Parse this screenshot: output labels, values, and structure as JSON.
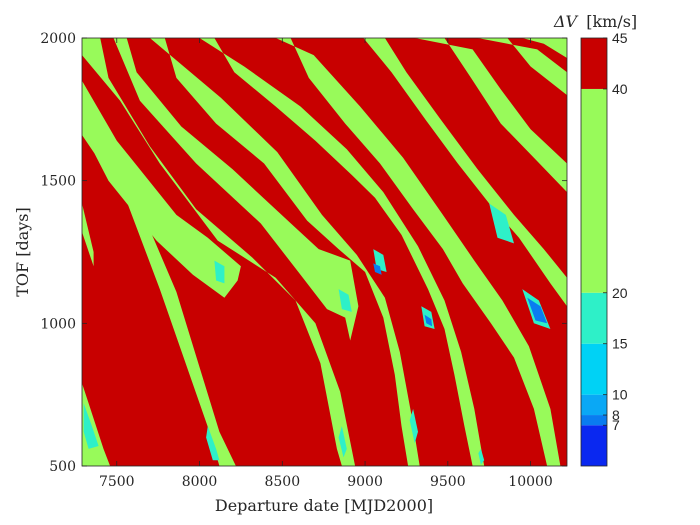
{
  "chart_data": {
    "type": "contour",
    "xlabel": "Departure date [MJD2000]",
    "ylabel": "TOF [days]",
    "xlim": [
      7290,
      10220
    ],
    "ylim": [
      500,
      2000
    ],
    "x_ticks": [
      "7500",
      "8000",
      "8500",
      "9000",
      "9500",
      "10000"
    ],
    "y_ticks": [
      "500",
      "1000",
      "1500",
      "2000"
    ],
    "colorbar": {
      "title_symbol": "ΔV",
      "title_unit": "[km/s]",
      "range": [
        3,
        45
      ],
      "tick_labels": [
        "7",
        "8",
        "10",
        "15",
        "20",
        "40",
        "45"
      ],
      "tick_values": [
        7,
        8,
        10,
        15,
        20,
        40,
        45
      ],
      "bands": [
        {
          "from": 3,
          "to": 7,
          "color": "#0a28f0"
        },
        {
          "from": 7,
          "to": 8,
          "color": "#0a7cf0"
        },
        {
          "from": 8,
          "to": 10,
          "color": "#0aa8f5"
        },
        {
          "from": 10,
          "to": 15,
          "color": "#00d2f5"
        },
        {
          "from": 15,
          "to": 20,
          "color": "#2ef0c8"
        },
        {
          "from": 20,
          "to": 40,
          "color": "#98fa5a"
        },
        {
          "from": 40,
          "to": 45,
          "color": "#c80000"
        }
      ]
    },
    "background_color": "#c80000",
    "colors": {
      "green": "#98fa5a",
      "cyan": "#2ef0c8",
      "lightblue": "#00d2f5",
      "blue": "#0a7cf0",
      "red": "#c80000"
    },
    "bands_regions": [
      {
        "points": [
          [
            7290,
            790
          ],
          [
            7330,
            720
          ],
          [
            7420,
            560
          ],
          [
            7460,
            500
          ],
          [
            7290,
            500
          ]
        ],
        "level": "green"
      },
      {
        "points": [
          [
            7290,
            1420
          ],
          [
            7360,
            1250
          ],
          [
            7360,
            1200
          ],
          [
            7290,
            1320
          ]
        ],
        "level": "green"
      },
      {
        "points": [
          [
            7290,
            1700
          ],
          [
            7500,
            1520
          ],
          [
            7760,
            1120
          ],
          [
            8060,
            620
          ],
          [
            8120,
            500
          ],
          [
            8220,
            500
          ],
          [
            8120,
            620
          ],
          [
            7860,
            1110
          ],
          [
            7610,
            1450
          ],
          [
            7360,
            1600
          ],
          [
            7290,
            1660
          ]
        ],
        "level": "green"
      },
      {
        "points": [
          [
            7290,
            1850
          ],
          [
            7500,
            1640
          ],
          [
            7860,
            1380
          ],
          [
            8050,
            1300
          ],
          [
            8250,
            1200
          ],
          [
            8230,
            1150
          ],
          [
            8150,
            1090
          ],
          [
            7960,
            1170
          ],
          [
            7740,
            1290
          ],
          [
            7450,
            1500
          ],
          [
            7290,
            1680
          ]
        ],
        "level": "green"
      },
      {
        "points": [
          [
            7290,
            2000
          ],
          [
            7400,
            2000
          ],
          [
            7450,
            1860
          ],
          [
            7700,
            1620
          ],
          [
            7980,
            1400
          ],
          [
            8320,
            1230
          ],
          [
            8580,
            1080
          ],
          [
            8730,
            860
          ],
          [
            8830,
            560
          ],
          [
            8860,
            500
          ],
          [
            8940,
            500
          ],
          [
            8850,
            760
          ],
          [
            8700,
            1000
          ],
          [
            8460,
            1160
          ],
          [
            8110,
            1290
          ],
          [
            7760,
            1560
          ],
          [
            7520,
            1780
          ],
          [
            7290,
            1940
          ]
        ],
        "level": "green"
      },
      {
        "points": [
          [
            7480,
            2000
          ],
          [
            7560,
            2000
          ],
          [
            7620,
            1880
          ],
          [
            7890,
            1690
          ],
          [
            8200,
            1540
          ],
          [
            8570,
            1340
          ],
          [
            8720,
            1260
          ],
          [
            8910,
            1220
          ],
          [
            8960,
            1060
          ],
          [
            8910,
            940
          ],
          [
            8880,
            1020
          ],
          [
            8770,
            1050
          ],
          [
            8610,
            1170
          ],
          [
            8370,
            1350
          ],
          [
            7980,
            1560
          ],
          [
            7640,
            1780
          ]
        ],
        "level": "green"
      },
      {
        "points": [
          [
            7700,
            2000
          ],
          [
            7790,
            2000
          ],
          [
            7860,
            1860
          ],
          [
            8100,
            1700
          ],
          [
            8390,
            1560
          ],
          [
            8650,
            1360
          ],
          [
            8840,
            1260
          ],
          [
            9000,
            1180
          ],
          [
            9110,
            1020
          ],
          [
            9180,
            820
          ],
          [
            9220,
            640
          ],
          [
            9260,
            500
          ],
          [
            9330,
            500
          ],
          [
            9280,
            680
          ],
          [
            9210,
            900
          ],
          [
            9120,
            1090
          ],
          [
            8950,
            1240
          ],
          [
            8740,
            1380
          ],
          [
            8470,
            1600
          ],
          [
            8130,
            1790
          ]
        ],
        "level": "green"
      },
      {
        "points": [
          [
            8000,
            2000
          ],
          [
            8090,
            2000
          ],
          [
            8210,
            1880
          ],
          [
            8460,
            1760
          ],
          [
            8700,
            1640
          ],
          [
            8920,
            1520
          ],
          [
            9060,
            1440
          ],
          [
            9220,
            1310
          ],
          [
            9380,
            1120
          ],
          [
            9480,
            980
          ],
          [
            9540,
            820
          ],
          [
            9600,
            640
          ],
          [
            9650,
            500
          ],
          [
            9720,
            500
          ],
          [
            9660,
            700
          ],
          [
            9580,
            900
          ],
          [
            9480,
            1080
          ],
          [
            9320,
            1270
          ],
          [
            9110,
            1460
          ],
          [
            8890,
            1610
          ],
          [
            8610,
            1760
          ],
          [
            8270,
            1900
          ]
        ],
        "level": "green"
      },
      {
        "points": [
          [
            8460,
            2000
          ],
          [
            8550,
            2000
          ],
          [
            8660,
            1860
          ],
          [
            8880,
            1700
          ],
          [
            9090,
            1560
          ],
          [
            9290,
            1400
          ],
          [
            9470,
            1260
          ],
          [
            9590,
            1140
          ],
          [
            9760,
            1000
          ],
          [
            9900,
            880
          ],
          [
            10020,
            700
          ],
          [
            10100,
            500
          ],
          [
            10180,
            500
          ],
          [
            10120,
            700
          ],
          [
            9990,
            920
          ],
          [
            9830,
            1080
          ],
          [
            9660,
            1220
          ],
          [
            9470,
            1380
          ],
          [
            9230,
            1580
          ],
          [
            8970,
            1760
          ],
          [
            8690,
            1940
          ]
        ],
        "level": "green"
      },
      {
        "points": [
          [
            8780,
            2000
          ],
          [
            8990,
            2000
          ],
          [
            9160,
            1880
          ],
          [
            9370,
            1710
          ],
          [
            9560,
            1560
          ],
          [
            9750,
            1420
          ],
          [
            9930,
            1300
          ],
          [
            10120,
            1140
          ],
          [
            10220,
            1060
          ],
          [
            10220,
            1160
          ],
          [
            10080,
            1260
          ],
          [
            9900,
            1380
          ],
          [
            9680,
            1540
          ],
          [
            9450,
            1720
          ],
          [
            9250,
            1880
          ],
          [
            9120,
            2000
          ]
        ],
        "level": "green"
      },
      {
        "points": [
          [
            9300,
            2000
          ],
          [
            9480,
            2000
          ],
          [
            9640,
            1860
          ],
          [
            9820,
            1700
          ],
          [
            10020,
            1580
          ],
          [
            10220,
            1460
          ],
          [
            10220,
            1560
          ],
          [
            10000,
            1680
          ],
          [
            9820,
            1820
          ],
          [
            9650,
            1960
          ]
        ],
        "level": "green"
      },
      {
        "points": [
          [
            9680,
            2000
          ],
          [
            9860,
            2000
          ],
          [
            10000,
            1900
          ],
          [
            10220,
            1800
          ],
          [
            10220,
            1880
          ],
          [
            10040,
            1960
          ]
        ],
        "level": "green"
      },
      {
        "points": [
          [
            9950,
            2000
          ],
          [
            10220,
            2000
          ],
          [
            10220,
            1930
          ],
          [
            10080,
            1980
          ]
        ],
        "level": "green"
      },
      {
        "points": [
          [
            7300,
            720
          ],
          [
            7350,
            640
          ],
          [
            7390,
            570
          ],
          [
            7330,
            560
          ],
          [
            7300,
            620
          ]
        ],
        "level": "cyan"
      },
      {
        "points": [
          [
            8050,
            640
          ],
          [
            8100,
            560
          ],
          [
            8120,
            520
          ],
          [
            8080,
            520
          ],
          [
            8040,
            600
          ]
        ],
        "level": "cyan"
      },
      {
        "points": [
          [
            8860,
            640
          ],
          [
            8890,
            560
          ],
          [
            8870,
            530
          ],
          [
            8840,
            600
          ]
        ],
        "level": "cyan"
      },
      {
        "points": [
          [
            9290,
            700
          ],
          [
            9320,
            620
          ],
          [
            9300,
            580
          ],
          [
            9270,
            660
          ]
        ],
        "level": "cyan"
      },
      {
        "points": [
          [
            9700,
            560
          ],
          [
            9720,
            520
          ],
          [
            9700,
            505
          ],
          [
            9685,
            545
          ]
        ],
        "level": "cyan"
      },
      {
        "points": [
          [
            8090,
            1220
          ],
          [
            8150,
            1200
          ],
          [
            8150,
            1140
          ],
          [
            8100,
            1150
          ]
        ],
        "level": "cyan"
      },
      {
        "points": [
          [
            8840,
            1120
          ],
          [
            8900,
            1100
          ],
          [
            8920,
            1040
          ],
          [
            8860,
            1050
          ]
        ],
        "level": "cyan"
      },
      {
        "points": [
          [
            9050,
            1260
          ],
          [
            9110,
            1240
          ],
          [
            9130,
            1180
          ],
          [
            9070,
            1190
          ]
        ],
        "level": "cyan"
      },
      {
        "points": [
          [
            9340,
            1060
          ],
          [
            9400,
            1040
          ],
          [
            9420,
            980
          ],
          [
            9360,
            990
          ]
        ],
        "level": "cyan"
      },
      {
        "points": [
          [
            9750,
            1420
          ],
          [
            9850,
            1380
          ],
          [
            9900,
            1280
          ],
          [
            9800,
            1300
          ]
        ],
        "level": "cyan"
      },
      {
        "points": [
          [
            9950,
            1120
          ],
          [
            10050,
            1080
          ],
          [
            10120,
            980
          ],
          [
            10020,
            1000
          ]
        ],
        "level": "cyan"
      },
      {
        "points": [
          [
            9050,
            1210
          ],
          [
            9090,
            1200
          ],
          [
            9100,
            1170
          ],
          [
            9060,
            1180
          ]
        ],
        "level": "blue"
      },
      {
        "points": [
          [
            9360,
            1030
          ],
          [
            9400,
            1015
          ],
          [
            9405,
            990
          ],
          [
            9370,
            1000
          ]
        ],
        "level": "blue"
      },
      {
        "points": [
          [
            9980,
            1090
          ],
          [
            10060,
            1060
          ],
          [
            10100,
            1000
          ],
          [
            10030,
            1010
          ]
        ],
        "level": "blue"
      }
    ]
  }
}
